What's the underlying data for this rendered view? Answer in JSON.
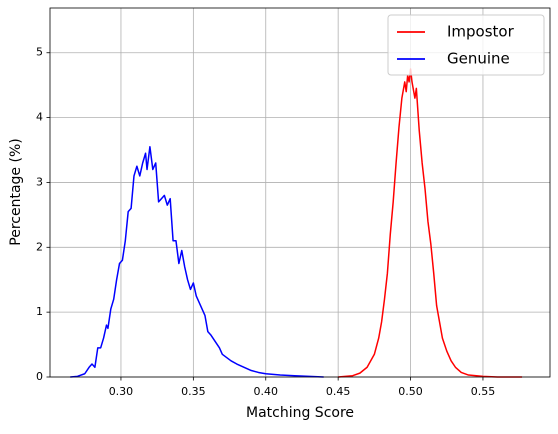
{
  "chart_data": {
    "type": "line",
    "xlabel": "Matching Score",
    "ylabel": "Percentage (%)",
    "xlim": [
      0.251,
      0.5963
    ],
    "ylim": [
      0,
      5.69
    ],
    "xticks": [
      {
        "value": 0.3,
        "label": "0.30"
      },
      {
        "value": 0.35,
        "label": "0.35"
      },
      {
        "value": 0.4,
        "label": "0.40"
      },
      {
        "value": 0.45,
        "label": "0.45"
      },
      {
        "value": 0.5,
        "label": "0.50"
      },
      {
        "value": 0.55,
        "label": "0.55"
      }
    ],
    "yticks": [
      0,
      1,
      2,
      3,
      4,
      5
    ],
    "grid": true,
    "legend": "upper right",
    "series": [
      {
        "name": "Impostor",
        "color": "#ff0000",
        "x": [
          0.45,
          0.46,
          0.465,
          0.47,
          0.475,
          0.478,
          0.48,
          0.482,
          0.484,
          0.486,
          0.488,
          0.49,
          0.492,
          0.494,
          0.496,
          0.497,
          0.498,
          0.499,
          0.5,
          0.501,
          0.503,
          0.504,
          0.506,
          0.508,
          0.51,
          0.512,
          0.514,
          0.516,
          0.518,
          0.52,
          0.522,
          0.525,
          0.528,
          0.531,
          0.535,
          0.54,
          0.55,
          0.56,
          0.577
        ],
        "values": [
          0,
          0.02,
          0.06,
          0.15,
          0.35,
          0.6,
          0.85,
          1.2,
          1.6,
          2.2,
          2.7,
          3.3,
          3.85,
          4.3,
          4.55,
          4.4,
          4.65,
          4.55,
          4.75,
          4.55,
          4.3,
          4.45,
          3.8,
          3.3,
          2.9,
          2.4,
          2.05,
          1.6,
          1.1,
          0.85,
          0.6,
          0.4,
          0.25,
          0.15,
          0.07,
          0.03,
          0.01,
          0,
          0
        ]
      },
      {
        "name": "Genuine",
        "color": "#0000ff",
        "x": [
          0.265,
          0.27,
          0.275,
          0.278,
          0.28,
          0.282,
          0.284,
          0.286,
          0.288,
          0.29,
          0.291,
          0.293,
          0.295,
          0.297,
          0.299,
          0.301,
          0.303,
          0.305,
          0.307,
          0.309,
          0.311,
          0.313,
          0.315,
          0.317,
          0.318,
          0.32,
          0.322,
          0.324,
          0.326,
          0.328,
          0.33,
          0.332,
          0.334,
          0.336,
          0.338,
          0.34,
          0.342,
          0.344,
          0.346,
          0.348,
          0.35,
          0.352,
          0.355,
          0.358,
          0.36,
          0.362,
          0.365,
          0.368,
          0.37,
          0.373,
          0.376,
          0.38,
          0.385,
          0.39,
          0.395,
          0.4,
          0.41,
          0.42,
          0.43,
          0.44
        ],
        "values": [
          0,
          0.01,
          0.05,
          0.15,
          0.2,
          0.15,
          0.45,
          0.45,
          0.6,
          0.8,
          0.75,
          1.05,
          1.2,
          1.5,
          1.75,
          1.8,
          2.1,
          2.55,
          2.6,
          3.1,
          3.25,
          3.1,
          3.3,
          3.45,
          3.2,
          3.55,
          3.2,
          3.3,
          2.7,
          2.75,
          2.8,
          2.65,
          2.75,
          2.1,
          2.1,
          1.75,
          1.95,
          1.7,
          1.5,
          1.35,
          1.45,
          1.25,
          1.1,
          0.95,
          0.7,
          0.65,
          0.55,
          0.45,
          0.35,
          0.3,
          0.25,
          0.2,
          0.15,
          0.1,
          0.07,
          0.05,
          0.03,
          0.02,
          0.01,
          0
        ]
      }
    ]
  }
}
